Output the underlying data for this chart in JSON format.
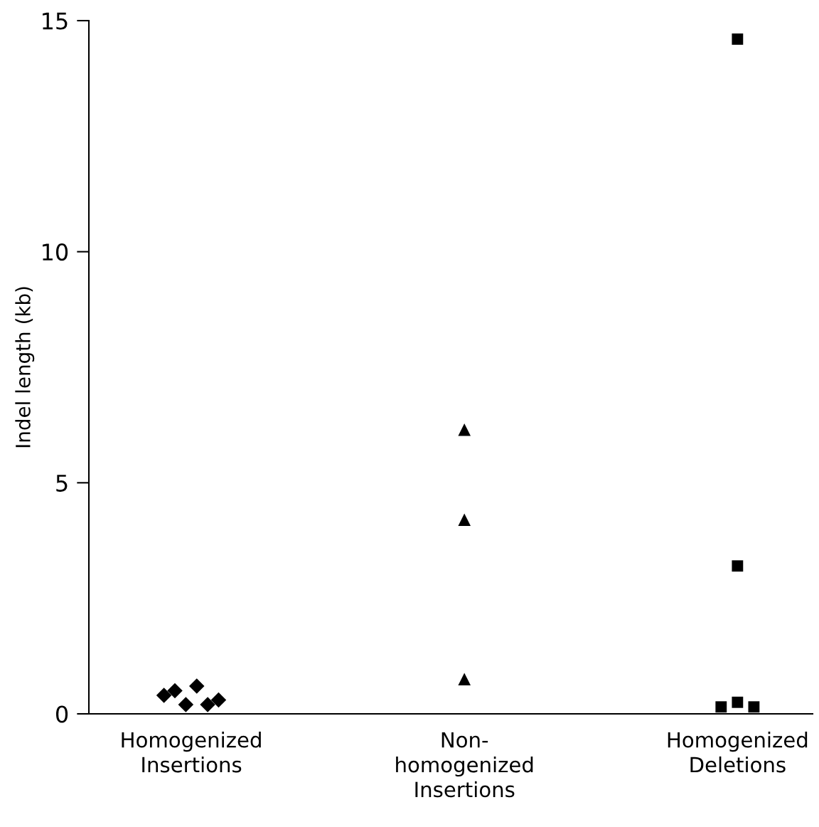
{
  "chart_data": {
    "type": "scatter",
    "ylabel": "Indel length (kb)",
    "categories": [
      "Homogenized\nInsertions",
      "Non-\nhomogenized\nInsertions",
      "Homogenized\nDeletions"
    ],
    "ylim": [
      0,
      15
    ],
    "yticks": [
      0,
      5,
      10,
      15
    ],
    "grid": false,
    "series": [
      {
        "color": "#000000",
        "marker": "diamond",
        "x": [
          "Homogenized\nInsertions",
          "Homogenized\nInsertions",
          "Homogenized\nInsertions",
          "Homogenized\nInsertions",
          "Homogenized\nInsertions",
          "Homogenized\nInsertions"
        ],
        "values": [
          0.4,
          0.5,
          0.2,
          0.6,
          0.2,
          0.3
        ]
      },
      {
        "color": "#000000",
        "marker": "triangle",
        "x": [
          "Non-\nhomogenized\nInsertions",
          "Non-\nhomogenized\nInsertions",
          "Non-\nhomogenized\nInsertions"
        ],
        "values": [
          6.15,
          4.2,
          0.75
        ]
      },
      {
        "color": "#000000",
        "marker": "square",
        "x": [
          "Homogenized\nDeletions",
          "Homogenized\nDeletions",
          "Homogenized\nDeletions",
          "Homogenized\nDeletions",
          "Homogenized\nDeletions"
        ],
        "values": [
          14.6,
          3.2,
          0.15,
          0.25,
          0.15
        ]
      }
    ]
  }
}
